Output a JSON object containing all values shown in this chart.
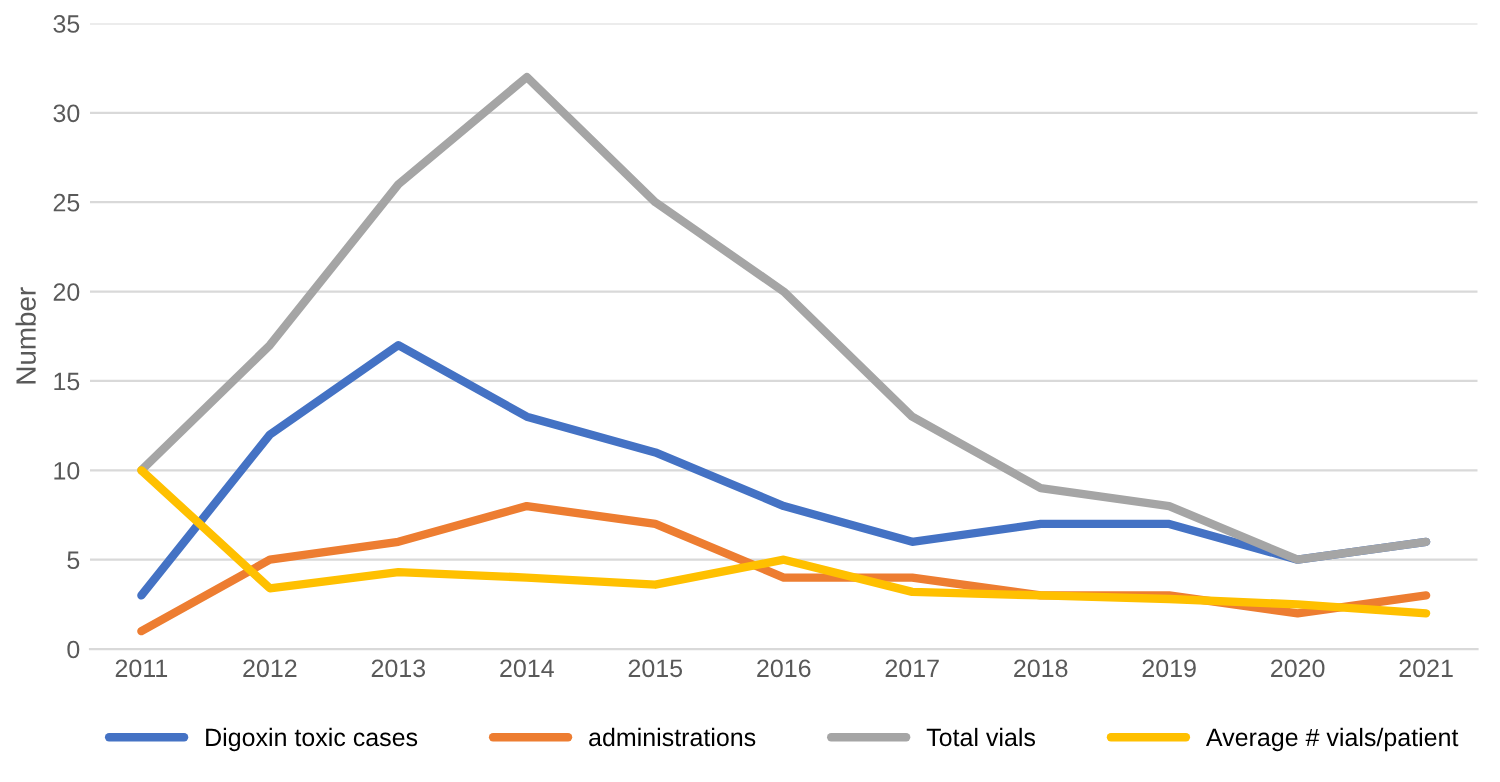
{
  "chart_data": {
    "type": "line",
    "ylabel": "Number",
    "categories": [
      "2011",
      "2012",
      "2013",
      "2014",
      "2015",
      "2016",
      "2017",
      "2018",
      "2019",
      "2020",
      "2021"
    ],
    "series": [
      {
        "name": "Digoxin toxic cases",
        "color": "#4472c4",
        "values": [
          3,
          12,
          17,
          13,
          11,
          8,
          6,
          7,
          7,
          5,
          6
        ]
      },
      {
        "name": "administrations",
        "color": "#ed7d31",
        "values": [
          1,
          5,
          6,
          8,
          7,
          4,
          4,
          3,
          3,
          2,
          3
        ]
      },
      {
        "name": "Total vials",
        "color": "#a5a5a5",
        "values": [
          10,
          17,
          26,
          32,
          25,
          20,
          13,
          9,
          8,
          5,
          6
        ]
      },
      {
        "name": "Average # vials/patient",
        "color": "#ffc000",
        "values": [
          10,
          3.4,
          4.3,
          4,
          3.6,
          5,
          3.2,
          3,
          2.8,
          2.5,
          2
        ]
      }
    ],
    "ylim": [
      0,
      35
    ],
    "yticks": [
      0,
      5,
      10,
      15,
      20,
      25,
      30,
      35
    ],
    "grid": "y",
    "legend": "bottom",
    "marker": "none",
    "line_style": "solid"
  }
}
